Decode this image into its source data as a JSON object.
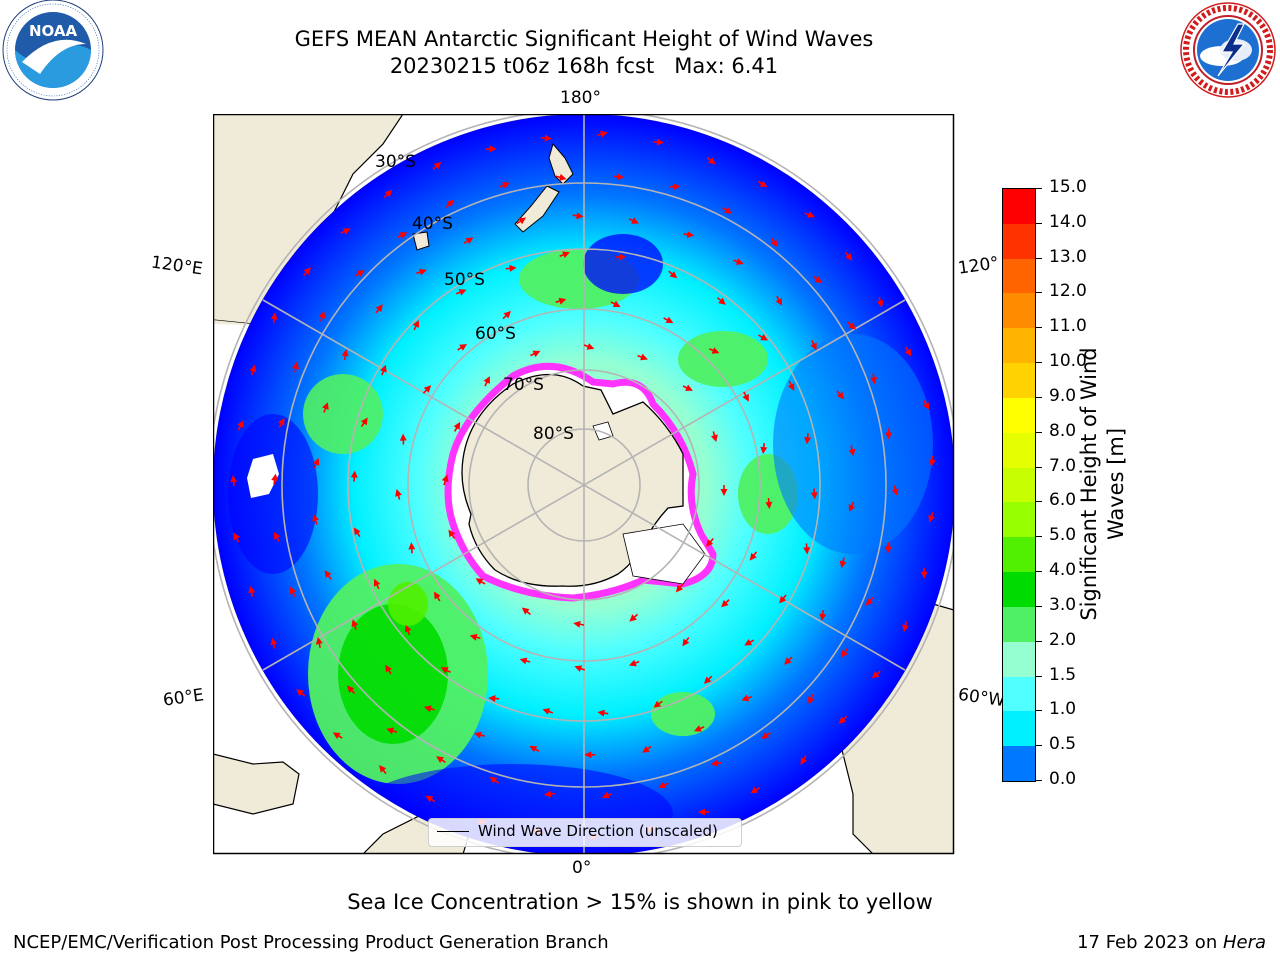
{
  "header": {
    "title_line1": "GEFS MEAN Antarctic Significant Height of Wind Waves",
    "title_line2": "20230215 t06z 168h fcst   Max: 6.41"
  },
  "logos": {
    "left": "noara-logo",
    "left_ring_text": "NATIONAL OCEANIC AND ATMOSPHERIC ADMINISTRATION · U.S. DEPARTMENT OF COMMERCE",
    "left_center_text": "NOAA",
    "right": "nws-logo",
    "right_ring_text": "NATIONAL WEATHER SERVICE"
  },
  "map": {
    "projection": "south-polar-stereographic",
    "lon_labels": {
      "top": "180°",
      "bottom": "0°",
      "left_upper": "120°E",
      "left_lower": "60°E",
      "right_upper": "120°",
      "right_lower": "60°W"
    },
    "lat_labels": [
      "30°S",
      "40°S",
      "50°S",
      "60°S",
      "70°S",
      "80°S"
    ],
    "colors": {
      "land": "#efebd8",
      "ocean_blue": "#0000ff",
      "ice_edge": "#ff33ff"
    },
    "legend_label": "Wind Wave Direction (unscaled)"
  },
  "colorbar": {
    "label_line1": "Significant Height of Wind",
    "label_line2": "Waves [m]",
    "ticks": [
      "15.0",
      "14.0",
      "13.0",
      "12.0",
      "11.0",
      "10.0",
      "9.0",
      "8.0",
      "7.0",
      "6.0",
      "5.0",
      "4.0",
      "3.0",
      "2.0",
      "1.5",
      "1.0",
      "0.5",
      "0.0"
    ],
    "colors_top_to_bottom": [
      "#ff0000",
      "#ff3200",
      "#ff6400",
      "#ff8c00",
      "#ffb400",
      "#ffd200",
      "#ffff00",
      "#e6ff00",
      "#c8ff00",
      "#96ff00",
      "#50f000",
      "#00dc00",
      "#50f064",
      "#96ffd2",
      "#50ffff",
      "#00f0ff",
      "#0078ff",
      "#0000ff"
    ]
  },
  "footer": {
    "note": "Sea Ice Concentration > 15% is shown in pink to yellow",
    "credit": "NCEP/EMC/Verification Post Processing Product Generation Branch",
    "date_prefix": "17 Feb 2023 on ",
    "date_machine": "Hera"
  }
}
